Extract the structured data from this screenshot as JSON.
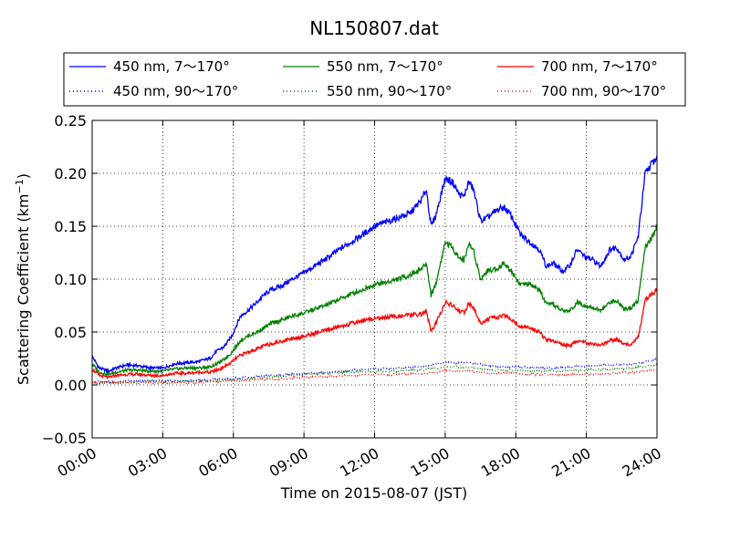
{
  "chart_data": {
    "type": "line",
    "title": "NL150807.dat",
    "xlabel": "Time on 2015-08-07 (JST)",
    "ylabel_main": "Scattering Coefficient (km",
    "ylabel_sup": "−1",
    "ylabel_close": ")",
    "xlim": [
      0,
      24
    ],
    "ylim": [
      -0.05,
      0.25
    ],
    "grid": true,
    "legend_location": "top, above plot",
    "x_ticks": [
      {
        "value": 0,
        "label": "00:00"
      },
      {
        "value": 3,
        "label": "03:00"
      },
      {
        "value": 6,
        "label": "06:00"
      },
      {
        "value": 9,
        "label": "09:00"
      },
      {
        "value": 12,
        "label": "12:00"
      },
      {
        "value": 15,
        "label": "15:00"
      },
      {
        "value": 18,
        "label": "18:00"
      },
      {
        "value": 21,
        "label": "21:00"
      },
      {
        "value": 24,
        "label": "24:00"
      }
    ],
    "y_ticks": [
      {
        "value": 0.25,
        "label": "0.25"
      },
      {
        "value": 0.2,
        "label": "0.20"
      },
      {
        "value": 0.15,
        "label": "0.15"
      },
      {
        "value": 0.1,
        "label": "0.10"
      },
      {
        "value": 0.05,
        "label": "0.05"
      },
      {
        "value": 0.0,
        "label": "0.00"
      },
      {
        "value": -0.05,
        "label": "−0.05"
      }
    ],
    "series": [
      {
        "name": "450 nm, 7～170°",
        "color": "#0000ff",
        "style": "solid",
        "x": [
          0,
          0.3,
          0.7,
          1,
          1.5,
          2,
          2.5,
          3,
          3.5,
          4,
          4.5,
          5,
          5.3,
          5.6,
          5.9,
          6.1,
          6.3,
          6.6,
          7,
          7.3,
          7.6,
          8,
          8.5,
          9,
          9.5,
          10,
          10.5,
          11,
          11.5,
          12,
          12.5,
          13,
          13.5,
          14,
          14.2,
          14.4,
          14.6,
          14.8,
          15,
          15.3,
          15.6,
          15.8,
          16,
          16.2,
          16.5,
          16.8,
          17.2,
          17.5,
          17.8,
          18.2,
          18.6,
          19,
          19.3,
          19.6,
          20,
          20.3,
          20.6,
          21,
          21.3,
          21.6,
          22,
          22.3,
          22.6,
          22.9,
          23.2,
          23.5,
          23.8,
          24
        ],
        "values": [
          0.027,
          0.016,
          0.013,
          0.016,
          0.019,
          0.018,
          0.016,
          0.016,
          0.02,
          0.021,
          0.022,
          0.025,
          0.032,
          0.036,
          0.045,
          0.055,
          0.065,
          0.07,
          0.078,
          0.085,
          0.09,
          0.093,
          0.1,
          0.106,
          0.113,
          0.12,
          0.128,
          0.135,
          0.142,
          0.15,
          0.154,
          0.158,
          0.162,
          0.175,
          0.185,
          0.15,
          0.16,
          0.178,
          0.195,
          0.192,
          0.18,
          0.178,
          0.192,
          0.185,
          0.155,
          0.158,
          0.165,
          0.168,
          0.16,
          0.142,
          0.135,
          0.128,
          0.112,
          0.115,
          0.107,
          0.113,
          0.128,
          0.12,
          0.118,
          0.112,
          0.128,
          0.13,
          0.118,
          0.122,
          0.14,
          0.2,
          0.21,
          0.215
        ]
      },
      {
        "name": "450 nm, 90～170°",
        "color": "#0000ff",
        "style": "dotted",
        "x": [
          0,
          1,
          2,
          3,
          4,
          5,
          6,
          7,
          8,
          9,
          10,
          11,
          12,
          13,
          14,
          15,
          16,
          17,
          18,
          19,
          20,
          21,
          22,
          23,
          24
        ],
        "values": [
          0.003,
          0.003,
          0.004,
          0.004,
          0.004,
          0.005,
          0.006,
          0.008,
          0.009,
          0.011,
          0.012,
          0.014,
          0.015,
          0.016,
          0.017,
          0.021,
          0.021,
          0.018,
          0.017,
          0.016,
          0.016,
          0.018,
          0.019,
          0.02,
          0.024
        ]
      },
      {
        "name": "550 nm, 7～170°",
        "color": "#008000",
        "style": "solid",
        "x": [
          0,
          0.3,
          0.7,
          1,
          1.5,
          2,
          2.5,
          3,
          3.5,
          4,
          4.5,
          5,
          5.3,
          5.6,
          5.9,
          6.1,
          6.3,
          6.6,
          7,
          7.3,
          7.6,
          8,
          8.5,
          9,
          9.5,
          10,
          10.5,
          11,
          11.5,
          12,
          12.5,
          13,
          13.5,
          14,
          14.2,
          14.4,
          14.6,
          14.8,
          15,
          15.3,
          15.6,
          15.8,
          16,
          16.2,
          16.5,
          16.8,
          17.2,
          17.5,
          17.8,
          18.2,
          18.6,
          19,
          19.3,
          19.6,
          20,
          20.3,
          20.6,
          21,
          21.3,
          21.6,
          22,
          22.3,
          22.6,
          22.9,
          23.2,
          23.5,
          23.8,
          24
        ],
        "values": [
          0.02,
          0.012,
          0.01,
          0.012,
          0.014,
          0.014,
          0.013,
          0.013,
          0.015,
          0.016,
          0.016,
          0.017,
          0.02,
          0.024,
          0.03,
          0.036,
          0.042,
          0.046,
          0.05,
          0.054,
          0.058,
          0.061,
          0.065,
          0.068,
          0.072,
          0.076,
          0.081,
          0.086,
          0.09,
          0.095,
          0.097,
          0.1,
          0.104,
          0.11,
          0.115,
          0.085,
          0.095,
          0.115,
          0.135,
          0.13,
          0.12,
          0.118,
          0.133,
          0.128,
          0.1,
          0.108,
          0.11,
          0.115,
          0.108,
          0.095,
          0.095,
          0.09,
          0.076,
          0.076,
          0.07,
          0.07,
          0.078,
          0.075,
          0.073,
          0.07,
          0.078,
          0.08,
          0.072,
          0.073,
          0.08,
          0.13,
          0.14,
          0.15
        ]
      },
      {
        "name": "550 nm, 90～170°",
        "color": "#008000",
        "style": "dotted",
        "x": [
          0,
          1,
          2,
          3,
          4,
          5,
          6,
          7,
          8,
          9,
          10,
          11,
          12,
          13,
          14,
          15,
          16,
          17,
          18,
          19,
          20,
          21,
          22,
          23,
          24
        ],
        "values": [
          0.002,
          0.002,
          0.003,
          0.003,
          0.003,
          0.004,
          0.005,
          0.007,
          0.008,
          0.01,
          0.011,
          0.012,
          0.013,
          0.013,
          0.014,
          0.017,
          0.017,
          0.014,
          0.014,
          0.013,
          0.013,
          0.014,
          0.015,
          0.016,
          0.019
        ]
      },
      {
        "name": "700 nm, 7～170°",
        "color": "#ff0000",
        "style": "solid",
        "x": [
          0,
          0.3,
          0.7,
          1,
          1.5,
          2,
          2.5,
          3,
          3.5,
          4,
          4.5,
          5,
          5.3,
          5.6,
          5.9,
          6.1,
          6.3,
          6.6,
          7,
          7.3,
          7.6,
          8,
          8.5,
          9,
          9.5,
          10,
          10.5,
          11,
          11.5,
          12,
          12.5,
          13,
          13.5,
          14,
          14.2,
          14.4,
          14.6,
          14.8,
          15,
          15.3,
          15.6,
          15.8,
          16,
          16.2,
          16.5,
          16.8,
          17.2,
          17.5,
          17.8,
          18.2,
          18.6,
          19,
          19.3,
          19.6,
          20,
          20.3,
          20.6,
          21,
          21.3,
          21.6,
          22,
          22.3,
          22.6,
          22.9,
          23.2,
          23.5,
          23.8,
          24
        ],
        "values": [
          0.015,
          0.009,
          0.007,
          0.009,
          0.01,
          0.01,
          0.009,
          0.009,
          0.011,
          0.011,
          0.012,
          0.012,
          0.014,
          0.017,
          0.021,
          0.025,
          0.028,
          0.031,
          0.034,
          0.037,
          0.039,
          0.041,
          0.044,
          0.046,
          0.049,
          0.052,
          0.055,
          0.058,
          0.061,
          0.063,
          0.064,
          0.065,
          0.066,
          0.067,
          0.07,
          0.05,
          0.058,
          0.068,
          0.078,
          0.075,
          0.07,
          0.068,
          0.077,
          0.073,
          0.058,
          0.062,
          0.064,
          0.066,
          0.062,
          0.055,
          0.054,
          0.05,
          0.042,
          0.042,
          0.038,
          0.037,
          0.042,
          0.04,
          0.038,
          0.037,
          0.042,
          0.043,
          0.038,
          0.039,
          0.045,
          0.08,
          0.086,
          0.09
        ]
      },
      {
        "name": "700 nm, 90～170°",
        "color": "#ff0000",
        "style": "dotted",
        "x": [
          0,
          1,
          2,
          3,
          4,
          5,
          6,
          7,
          8,
          9,
          10,
          11,
          12,
          13,
          14,
          15,
          16,
          17,
          18,
          19,
          20,
          21,
          22,
          23,
          24
        ],
        "values": [
          0.002,
          0.002,
          0.002,
          0.002,
          0.002,
          0.003,
          0.004,
          0.005,
          0.006,
          0.007,
          0.008,
          0.009,
          0.01,
          0.01,
          0.011,
          0.013,
          0.013,
          0.011,
          0.011,
          0.01,
          0.01,
          0.01,
          0.011,
          0.012,
          0.014
        ]
      }
    ]
  }
}
